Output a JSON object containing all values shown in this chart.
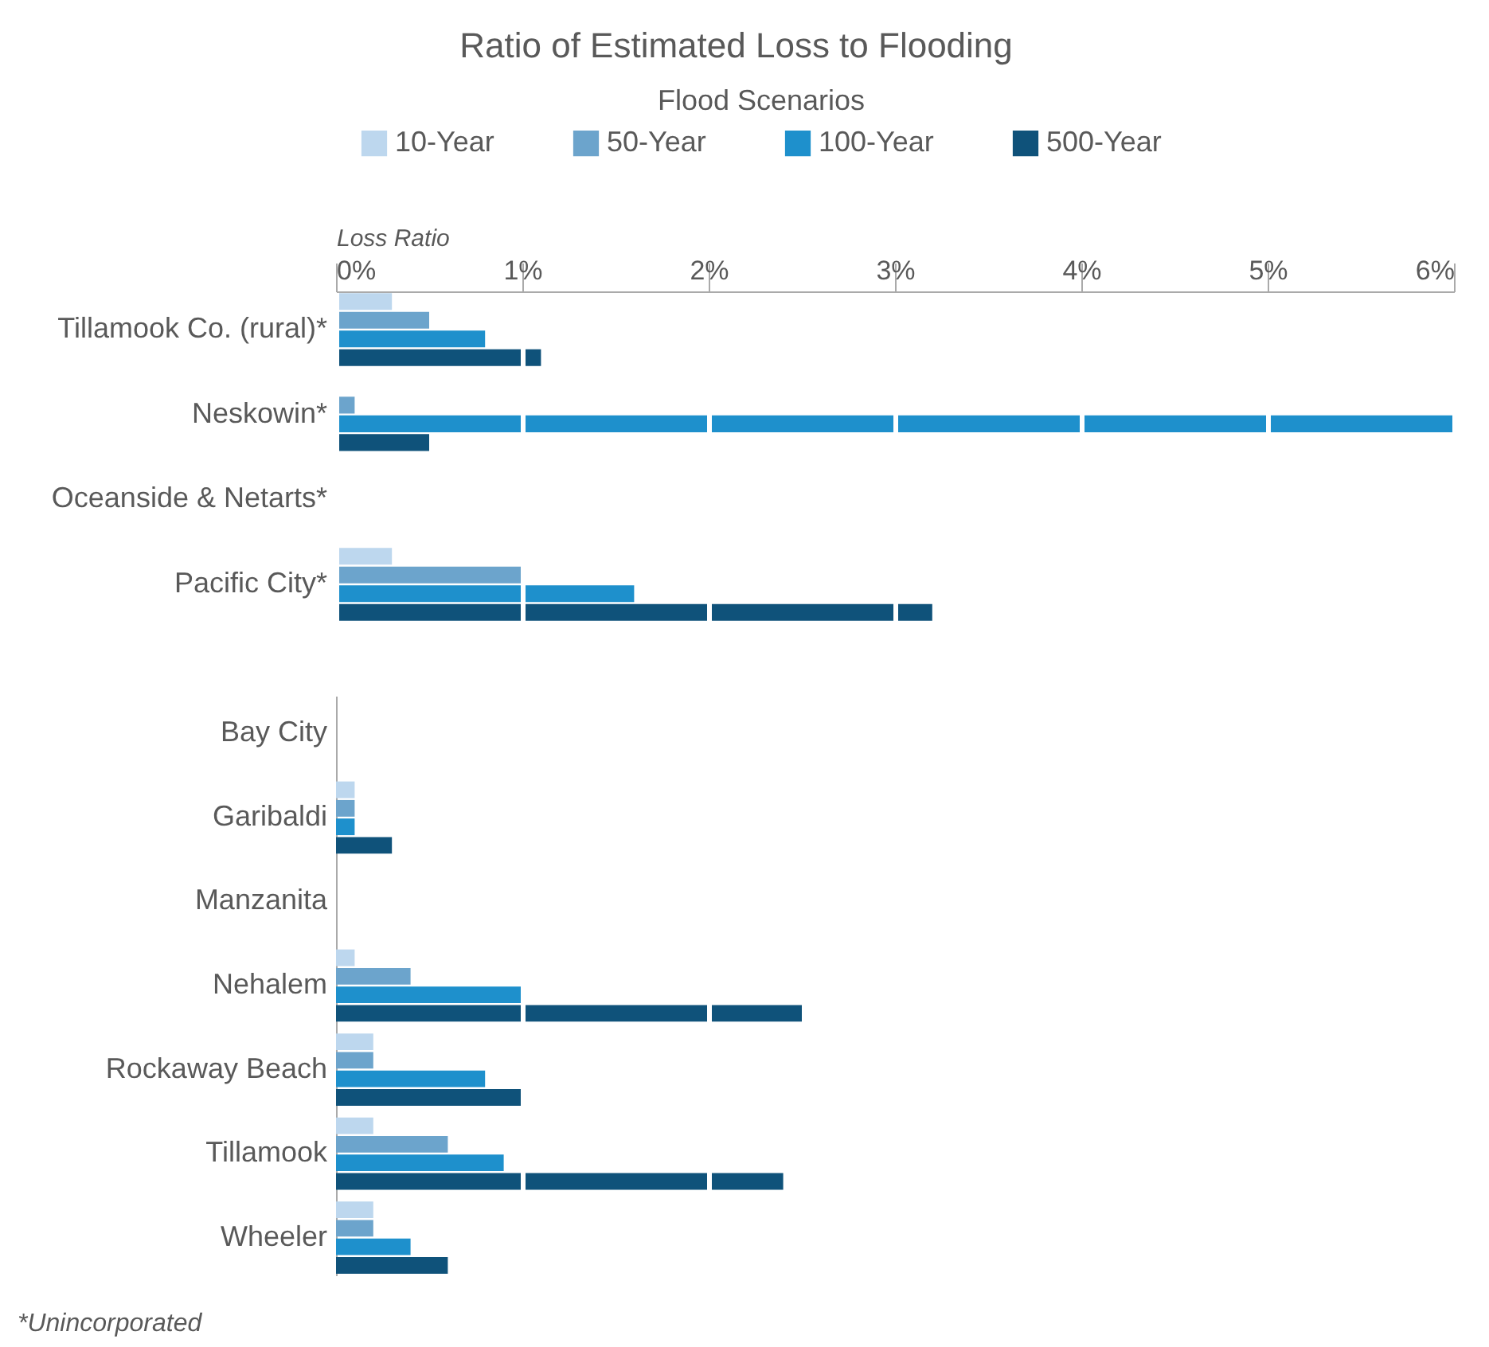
{
  "chart_data": [
    {
      "type": "bar",
      "orientation": "horizontal",
      "title": "Ratio of Estimated Loss to Flooding",
      "legend_title": "Flood Scenarios",
      "xlabel": "Loss Ratio",
      "legend": "top",
      "categories": [
        "Tillamook Co. (rural)*",
        "Neskowin*",
        "Oceanside & Netarts*",
        "Pacific City*"
      ],
      "series": [
        {
          "name": "10-Year",
          "color": "#bdd7ee",
          "values": [
            0.3,
            0,
            0,
            0.3
          ]
        },
        {
          "name": "50-Year",
          "color": "#6ca4cc",
          "values": [
            0.5,
            0.1,
            0,
            1.0
          ]
        },
        {
          "name": "100-Year",
          "color": "#1e90cc",
          "values": [
            0.8,
            6.0,
            0,
            1.6
          ]
        },
        {
          "name": "500-Year",
          "color": "#0f527a",
          "values": [
            1.1,
            0.5,
            0,
            3.2
          ]
        }
      ],
      "xlim": [
        0,
        6
      ],
      "xticks": [
        {
          "value": 0,
          "label": "0%"
        },
        {
          "value": 1,
          "label": "1%"
        },
        {
          "value": 2,
          "label": "2%"
        },
        {
          "value": 3,
          "label": "3%"
        },
        {
          "value": 4,
          "label": "4%"
        },
        {
          "value": 5,
          "label": "5%"
        },
        {
          "value": 6,
          "label": "6%"
        }
      ],
      "grid": "x"
    },
    {
      "type": "bar",
      "orientation": "horizontal",
      "annotations": [
        "*Unincorporated"
      ],
      "categories": [
        "Bay City",
        "Garibaldi",
        "Manzanita",
        "Nehalem",
        "Rockaway Beach",
        "Tillamook",
        "Wheeler"
      ],
      "series": [
        {
          "color": "#bdd7ee",
          "values": [
            0,
            0.1,
            0,
            0.1,
            0.2,
            0.2,
            0.2
          ]
        },
        {
          "color": "#6ca4cc",
          "values": [
            0,
            0.1,
            0,
            0.4,
            0.2,
            0.6,
            0.2
          ]
        },
        {
          "color": "#1e90cc",
          "values": [
            0,
            0.1,
            0,
            1.0,
            0.8,
            0.9,
            0.4
          ]
        },
        {
          "color": "#0f527a",
          "values": [
            0,
            0.3,
            0,
            2.5,
            1.0,
            2.4,
            0.6
          ]
        }
      ],
      "xlim": [
        0,
        6
      ],
      "xticks": [
        {
          "value": 1,
          "label": null
        },
        {
          "value": 2,
          "label": null
        },
        {
          "value": 3,
          "label": null
        },
        {
          "value": 4,
          "label": null
        },
        {
          "value": 5,
          "label": null
        }
      ],
      "grid": "x",
      "tick_labels": "y"
    }
  ]
}
